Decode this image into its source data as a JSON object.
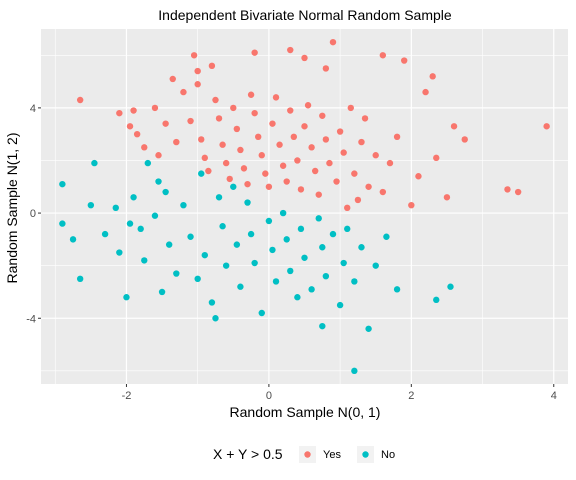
{
  "chart_data": {
    "type": "scatter",
    "title": "Independent Bivariate Normal Random Sample",
    "xlabel": "Random Sample N(0, 1)",
    "ylabel": "Random Sample N(1, 2)",
    "xlim": [
      -3.2,
      4.2
    ],
    "ylim": [
      -6.5,
      7.0
    ],
    "x_ticks": [
      -2,
      0,
      2,
      4
    ],
    "x_tick_labels": [
      "-2",
      "0",
      "2",
      "4"
    ],
    "y_ticks": [
      -4,
      0,
      4
    ],
    "y_tick_labels": [
      "-4",
      "0",
      "4"
    ],
    "grid": true,
    "panel_background": "#ebebeb",
    "grid_color": "#ffffff",
    "legend": {
      "title": "X + Y > 0.5",
      "position": "bottom"
    },
    "series": [
      {
        "name": "Yes",
        "color": "#f8766d",
        "points": [
          [
            -2.65,
            4.3
          ],
          [
            -2.1,
            3.8
          ],
          [
            -1.95,
            3.3
          ],
          [
            -1.85,
            3.0
          ],
          [
            -1.75,
            2.5
          ],
          [
            -1.6,
            4.0
          ],
          [
            -1.55,
            2.2
          ],
          [
            -1.45,
            3.4
          ],
          [
            -1.35,
            5.1
          ],
          [
            -1.3,
            2.7
          ],
          [
            -1.2,
            4.6
          ],
          [
            -1.1,
            3.5
          ],
          [
            -1.05,
            6.0
          ],
          [
            -1.0,
            4.9
          ],
          [
            -0.95,
            2.8
          ],
          [
            -0.9,
            2.1
          ],
          [
            -0.85,
            1.6
          ],
          [
            -0.8,
            5.6
          ],
          [
            -0.75,
            4.3
          ],
          [
            -0.7,
            3.6
          ],
          [
            -0.65,
            2.6
          ],
          [
            -0.6,
            1.9
          ],
          [
            -0.55,
            1.3
          ],
          [
            -0.5,
            4.0
          ],
          [
            -0.45,
            3.2
          ],
          [
            -0.4,
            2.4
          ],
          [
            -0.35,
            1.7
          ],
          [
            -0.3,
            1.1
          ],
          [
            -0.25,
            4.5
          ],
          [
            -0.2,
            3.8
          ],
          [
            -0.15,
            2.9
          ],
          [
            -0.1,
            2.2
          ],
          [
            -0.05,
            1.5
          ],
          [
            0.0,
            1.0
          ],
          [
            0.05,
            3.4
          ],
          [
            0.1,
            4.4
          ],
          [
            0.15,
            2.6
          ],
          [
            0.2,
            1.8
          ],
          [
            0.25,
            1.2
          ],
          [
            0.3,
            3.9
          ],
          [
            0.35,
            2.9
          ],
          [
            0.4,
            2.0
          ],
          [
            0.45,
            0.9
          ],
          [
            0.5,
            3.3
          ],
          [
            0.55,
            4.1
          ],
          [
            0.6,
            2.5
          ],
          [
            0.65,
            1.6
          ],
          [
            0.7,
            0.7
          ],
          [
            0.75,
            3.7
          ],
          [
            0.8,
            2.8
          ],
          [
            0.85,
            1.9
          ],
          [
            0.9,
            6.5
          ],
          [
            0.95,
            1.2
          ],
          [
            1.0,
            3.1
          ],
          [
            1.05,
            2.3
          ],
          [
            1.1,
            0.2
          ],
          [
            1.15,
            4.0
          ],
          [
            1.2,
            1.5
          ],
          [
            1.25,
            0.5
          ],
          [
            1.3,
            2.7
          ],
          [
            1.35,
            3.6
          ],
          [
            1.4,
            1.0
          ],
          [
            1.5,
            2.2
          ],
          [
            1.6,
            0.8
          ],
          [
            1.7,
            1.9
          ],
          [
            1.8,
            2.9
          ],
          [
            1.9,
            5.8
          ],
          [
            2.0,
            0.3
          ],
          [
            2.1,
            1.4
          ],
          [
            2.2,
            4.6
          ],
          [
            2.35,
            2.1
          ],
          [
            2.5,
            0.6
          ],
          [
            2.6,
            3.3
          ],
          [
            2.75,
            2.8
          ],
          [
            3.35,
            0.9
          ],
          [
            3.5,
            0.8
          ],
          [
            3.9,
            3.3
          ],
          [
            0.5,
            5.9
          ],
          [
            -1.9,
            3.9
          ],
          [
            0.3,
            6.2
          ],
          [
            1.6,
            6.0
          ],
          [
            2.3,
            5.2
          ],
          [
            -0.2,
            6.1
          ],
          [
            0.8,
            5.5
          ],
          [
            -1.0,
            5.4
          ]
        ]
      },
      {
        "name": "No",
        "color": "#00bfc4",
        "points": [
          [
            -2.9,
            1.1
          ],
          [
            -2.9,
            -0.4
          ],
          [
            -2.75,
            -1.0
          ],
          [
            -2.65,
            -2.5
          ],
          [
            -2.45,
            1.9
          ],
          [
            -2.3,
            -0.8
          ],
          [
            -2.15,
            0.2
          ],
          [
            -2.1,
            -1.5
          ],
          [
            -2.0,
            -3.2
          ],
          [
            -1.9,
            0.6
          ],
          [
            -1.8,
            -0.6
          ],
          [
            -1.75,
            -1.8
          ],
          [
            -1.7,
            1.9
          ],
          [
            -1.6,
            -0.1
          ],
          [
            -1.5,
            -3.0
          ],
          [
            -1.45,
            0.8
          ],
          [
            -1.4,
            -1.2
          ],
          [
            -1.3,
            -2.3
          ],
          [
            -1.2,
            0.3
          ],
          [
            -1.1,
            -0.9
          ],
          [
            -1.0,
            -2.5
          ],
          [
            -0.95,
            1.5
          ],
          [
            -0.9,
            -1.6
          ],
          [
            -0.8,
            -3.4
          ],
          [
            -0.75,
            -4.0
          ],
          [
            -0.7,
            0.6
          ],
          [
            -0.65,
            -0.5
          ],
          [
            -0.6,
            -2.0
          ],
          [
            -0.5,
            1.0
          ],
          [
            -0.45,
            -1.2
          ],
          [
            -0.4,
            -2.8
          ],
          [
            -0.3,
            0.4
          ],
          [
            -0.25,
            -0.8
          ],
          [
            -0.2,
            -1.9
          ],
          [
            -0.1,
            -3.8
          ],
          [
            0.0,
            -0.3
          ],
          [
            0.05,
            -1.4
          ],
          [
            0.1,
            -2.6
          ],
          [
            0.2,
            0.0
          ],
          [
            0.25,
            -1.0
          ],
          [
            0.3,
            -2.2
          ],
          [
            0.4,
            -3.2
          ],
          [
            0.45,
            -0.6
          ],
          [
            0.5,
            -1.7
          ],
          [
            0.6,
            -2.9
          ],
          [
            0.7,
            -0.2
          ],
          [
            0.75,
            -1.3
          ],
          [
            0.8,
            -2.4
          ],
          [
            0.9,
            -0.8
          ],
          [
            1.0,
            -3.5
          ],
          [
            1.05,
            -1.9
          ],
          [
            1.1,
            -0.6
          ],
          [
            1.2,
            -2.6
          ],
          [
            1.3,
            -1.3
          ],
          [
            1.4,
            -4.4
          ],
          [
            1.5,
            -2.0
          ],
          [
            1.65,
            -0.9
          ],
          [
            1.8,
            -2.9
          ],
          [
            2.35,
            -3.3
          ],
          [
            2.55,
            -2.8
          ],
          [
            1.2,
            -6.0
          ],
          [
            0.75,
            -4.3
          ],
          [
            -2.5,
            0.3
          ],
          [
            -1.95,
            -0.4
          ],
          [
            -1.55,
            1.2
          ]
        ]
      }
    ]
  }
}
